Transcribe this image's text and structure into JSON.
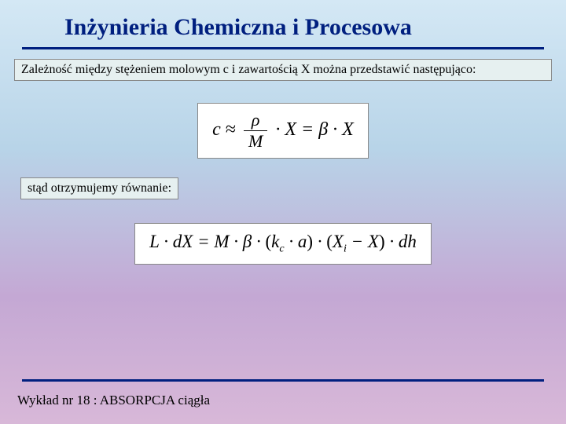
{
  "title": "Inżynieria Chemiczna i Procesowa",
  "intro": "Zależność między stężeniem molowym c i zawartością X można przedstawić następująco:",
  "eq1": {
    "lhs": "c",
    "approx": "≈",
    "frac_num": "ρ",
    "frac_den": "M",
    "times1": "· X =",
    "beta": "β",
    "times2": "· X"
  },
  "mid": "stąd otrzymujemy równanie:",
  "eq2": {
    "part1": "L · dX = M · β · ",
    "lp": "(",
    "kc": "k",
    "kc_sub": "c",
    "dota": " · a",
    "rp": ")",
    "dot2": " · ",
    "lp2": "(",
    "xi": "X",
    "xi_sub": "i",
    "minus": " − X",
    "rp2": ")",
    "tail": " · dh"
  },
  "footer": "Wykład nr 18  : ABSORPCJA ciągła"
}
